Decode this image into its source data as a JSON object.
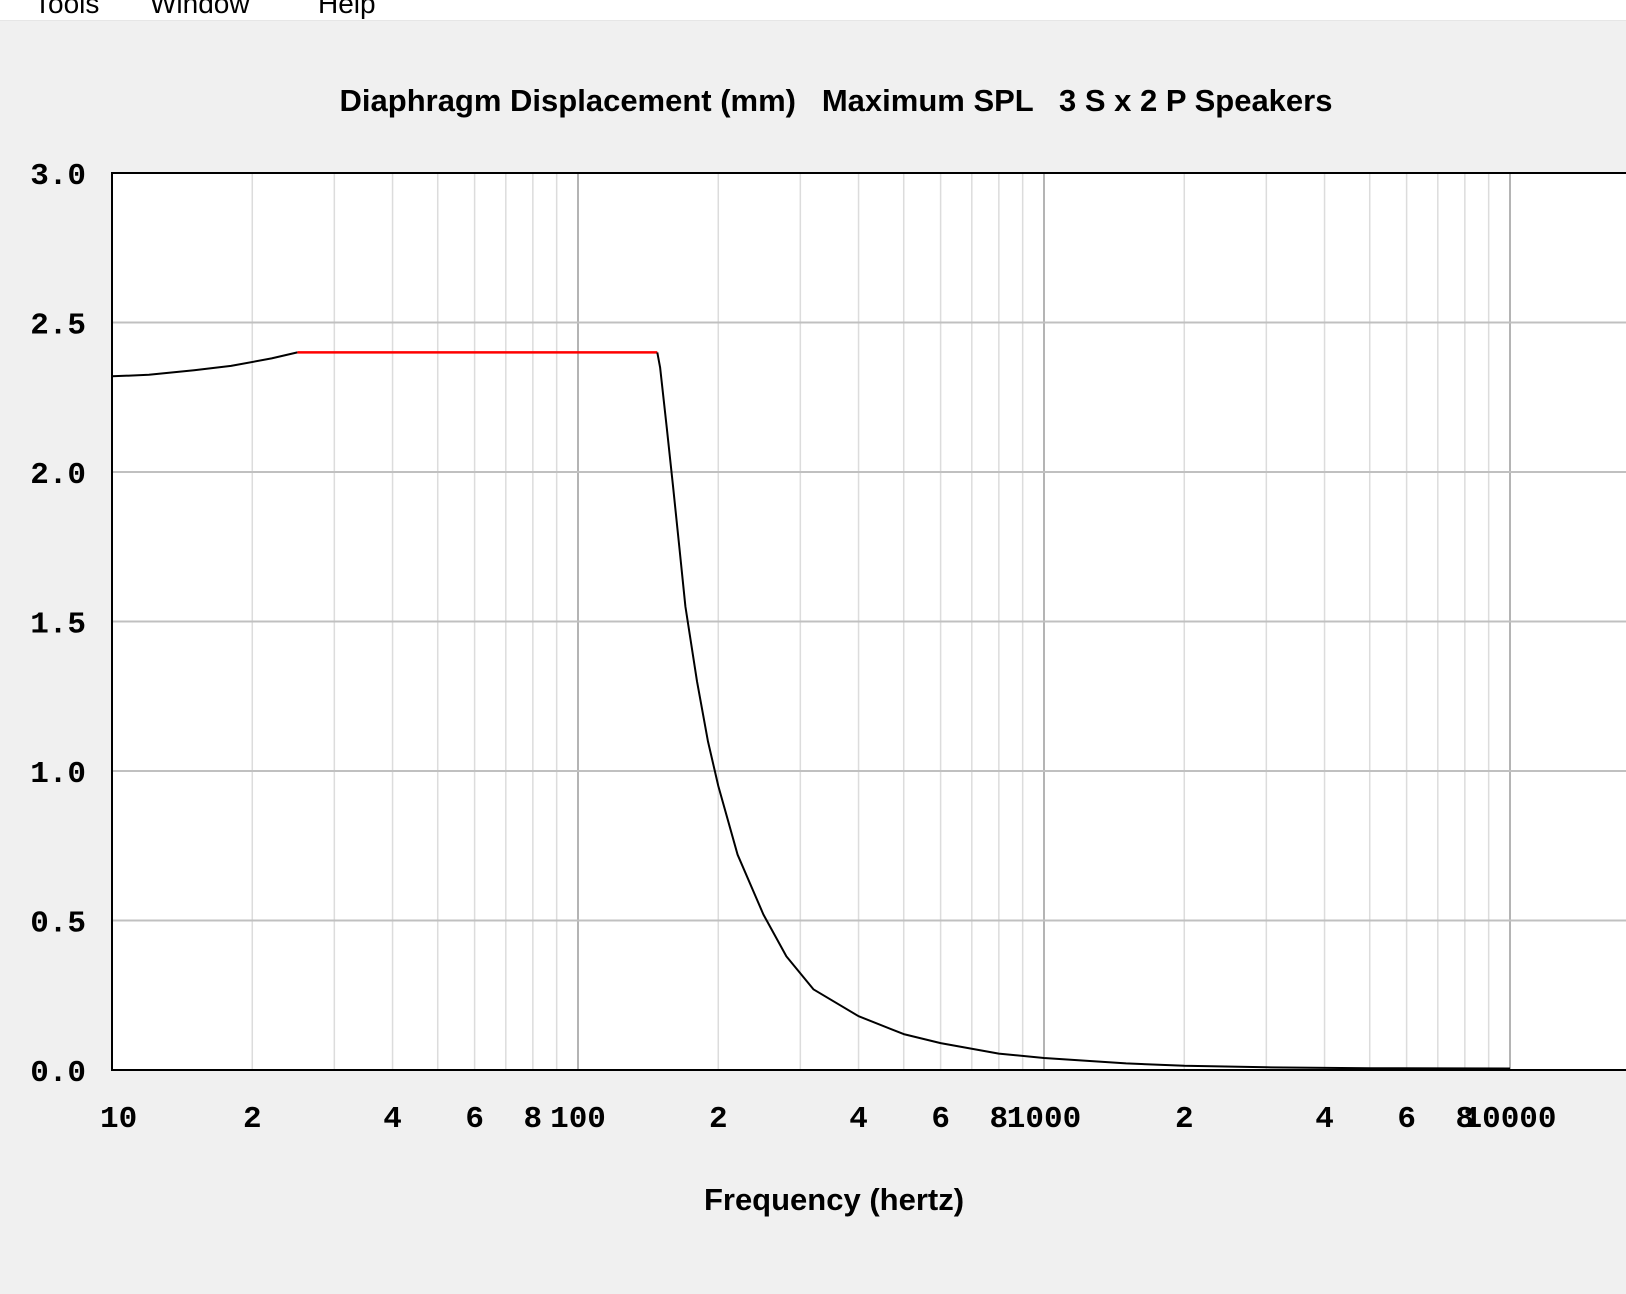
{
  "menu": {
    "items": [
      "Tools",
      "Window",
      "Help"
    ]
  },
  "chart_data": {
    "type": "line",
    "title": "Diaphragm Displacement (mm)   Maximum SPL   3 S x 2 P Speakers",
    "xlabel": "Frequency (hertz)",
    "ylabel": "",
    "x_scale": "log",
    "xlim": [
      10,
      10000
    ],
    "ylim": [
      0,
      3
    ],
    "grid": true,
    "x_tick_labels": [
      {
        "value": 10,
        "label": "10"
      },
      {
        "value": 20,
        "label": "2"
      },
      {
        "value": 40,
        "label": "4"
      },
      {
        "value": 60,
        "label": "6"
      },
      {
        "value": 80,
        "label": "8"
      },
      {
        "value": 100,
        "label": "100"
      },
      {
        "value": 200,
        "label": "2"
      },
      {
        "value": 400,
        "label": "4"
      },
      {
        "value": 600,
        "label": "6"
      },
      {
        "value": 800,
        "label": "8"
      },
      {
        "value": 1000,
        "label": "1000"
      },
      {
        "value": 2000,
        "label": "2"
      },
      {
        "value": 4000,
        "label": "4"
      },
      {
        "value": 6000,
        "label": "6"
      },
      {
        "value": 8000,
        "label": "8"
      },
      {
        "value": 10000,
        "label": "10000"
      }
    ],
    "y_tick_labels": [
      {
        "value": 0.0,
        "label": "0.0"
      },
      {
        "value": 0.5,
        "label": "0.5"
      },
      {
        "value": 1.0,
        "label": "1.0"
      },
      {
        "value": 1.5,
        "label": "1.5"
      },
      {
        "value": 2.0,
        "label": "2.0"
      },
      {
        "value": 2.5,
        "label": "2.5"
      },
      {
        "value": 3.0,
        "label": "3.0"
      }
    ],
    "series": [
      {
        "color": "#000000",
        "x": [
          10,
          12,
          15,
          18,
          22,
          25
        ],
        "y": [
          2.32,
          2.325,
          2.34,
          2.355,
          2.38,
          2.4
        ]
      },
      {
        "color": "#ff0000",
        "x": [
          25,
          148
        ],
        "y": [
          2.4,
          2.4
        ]
      },
      {
        "color": "#000000",
        "x": [
          148,
          150,
          155,
          160,
          165,
          170,
          180,
          190,
          200,
          220,
          250,
          280,
          320,
          400,
          500,
          600,
          800,
          1000,
          1500,
          2000,
          3000,
          5000,
          10000
        ],
        "y": [
          2.4,
          2.35,
          2.15,
          1.95,
          1.75,
          1.55,
          1.3,
          1.1,
          0.95,
          0.72,
          0.52,
          0.38,
          0.27,
          0.18,
          0.12,
          0.09,
          0.055,
          0.04,
          0.022,
          0.014,
          0.009,
          0.006,
          0.005
        ]
      }
    ]
  }
}
